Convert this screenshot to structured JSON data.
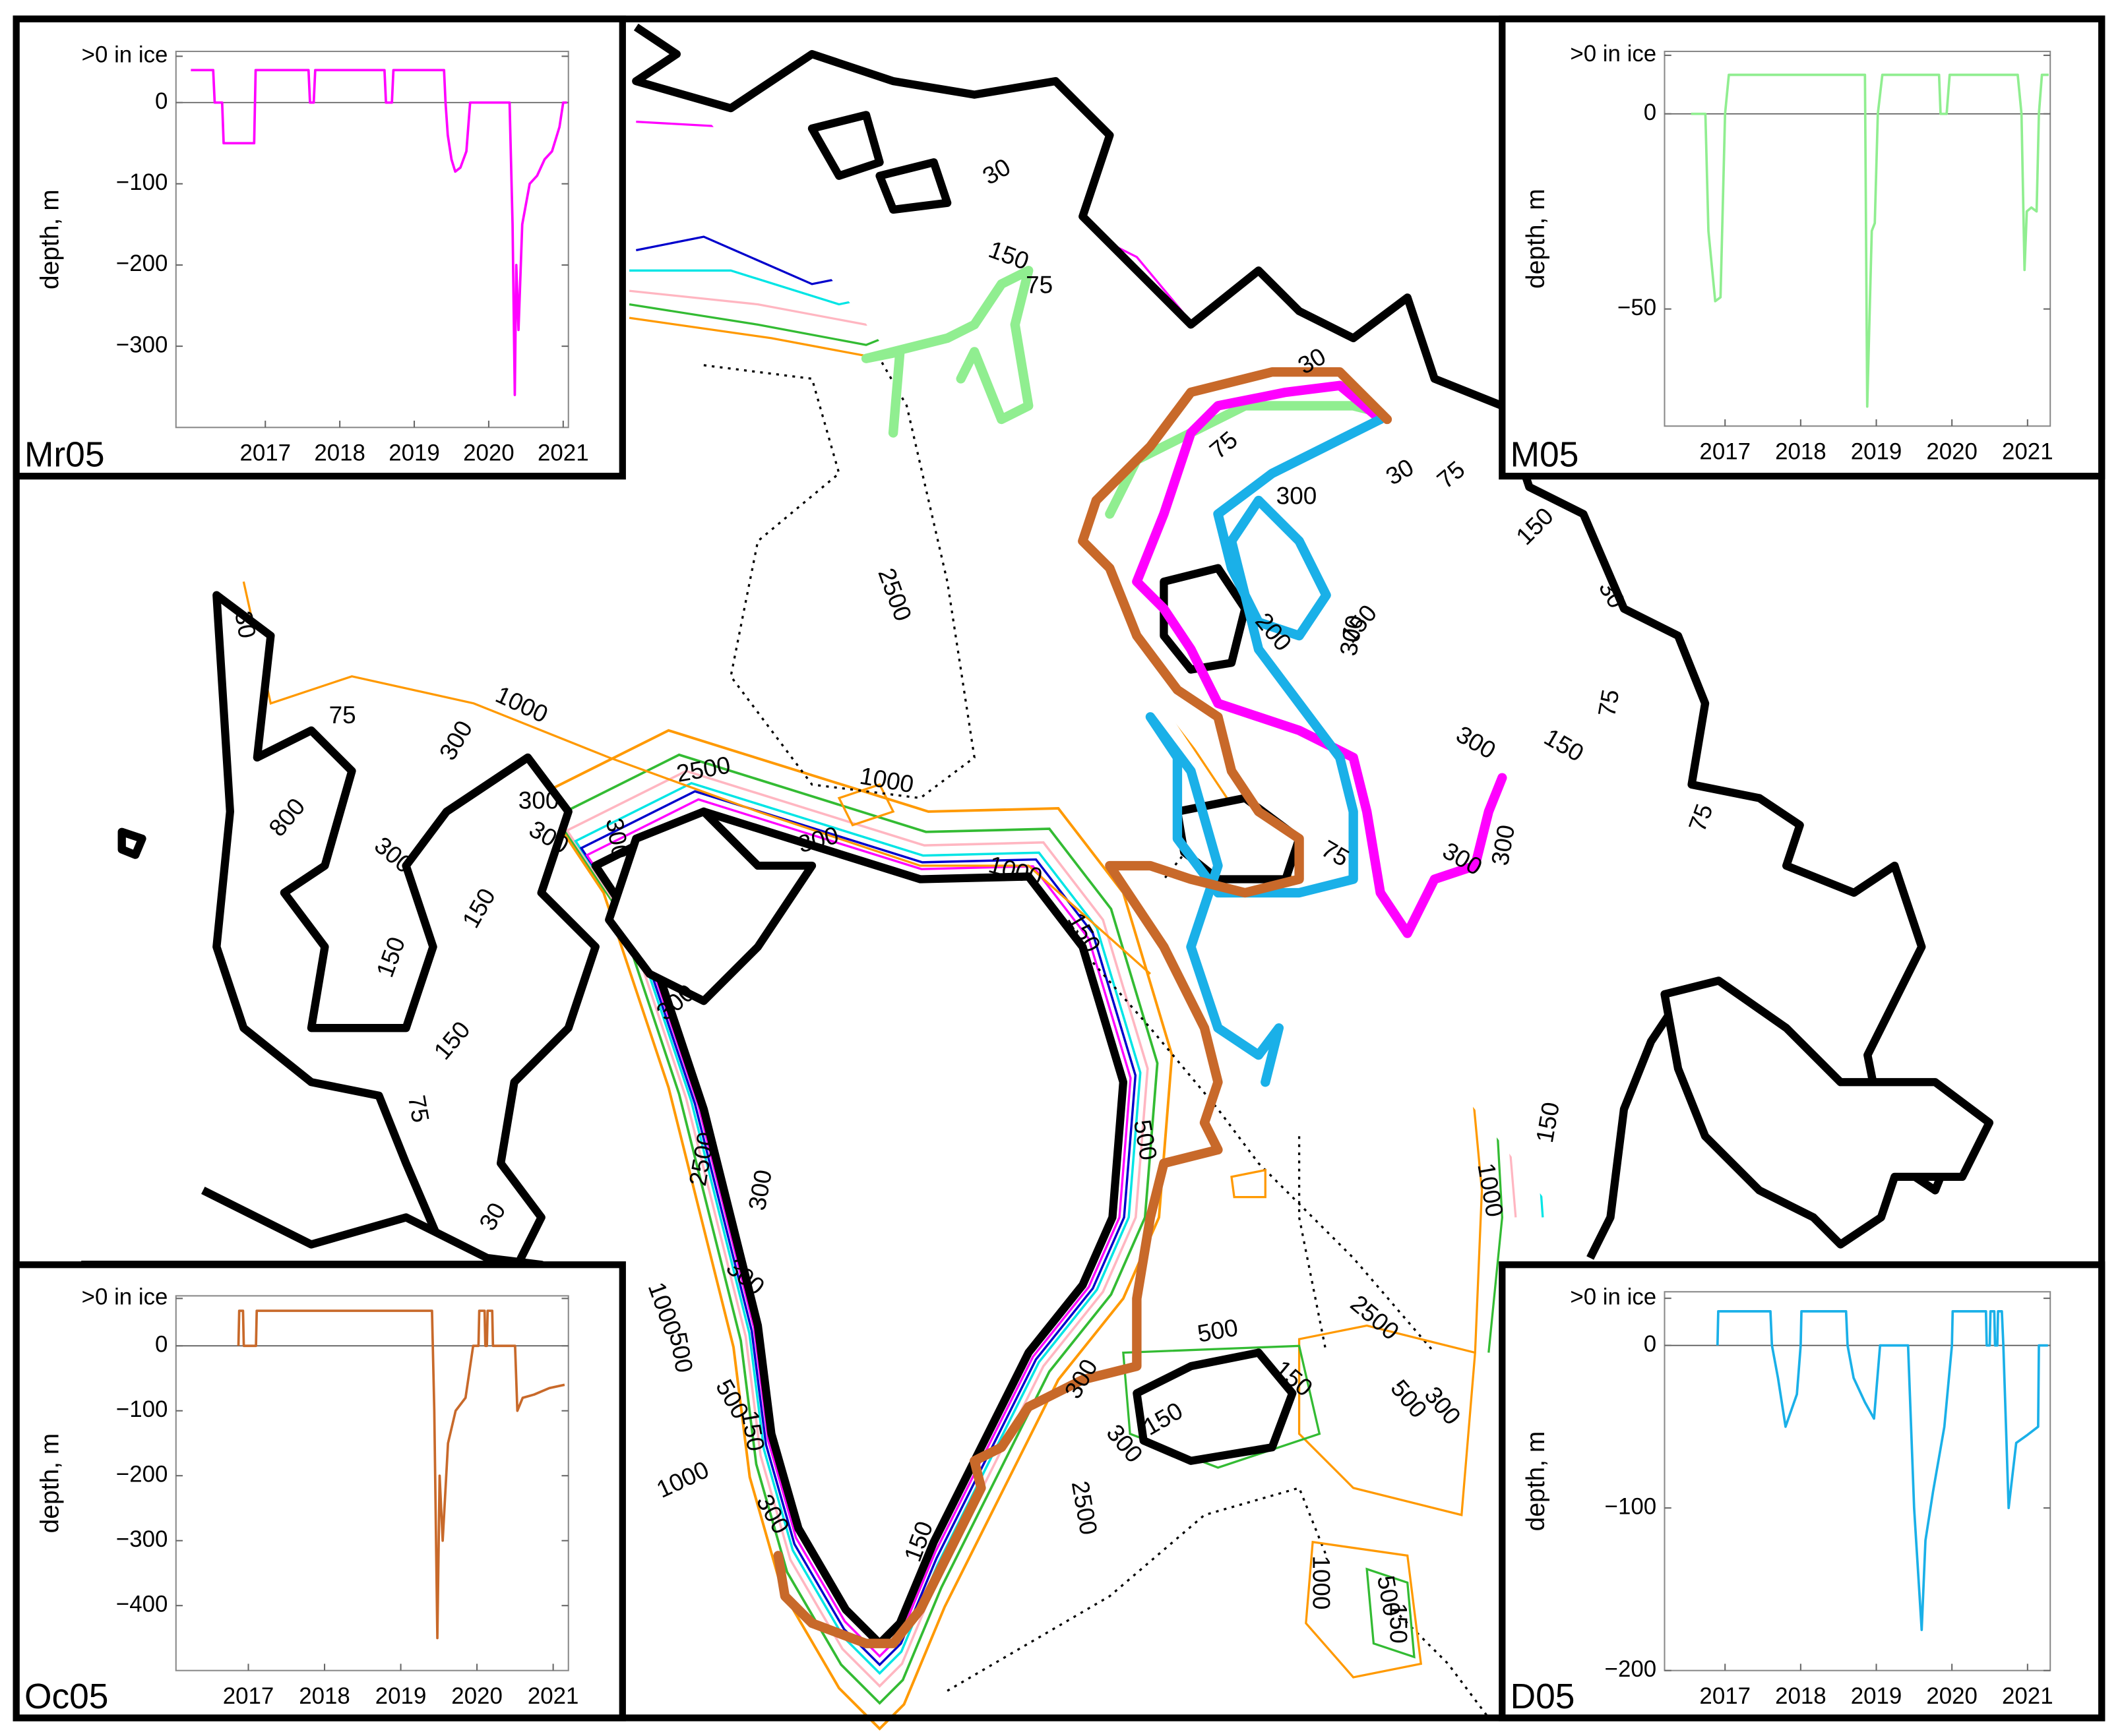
{
  "chart_data": [
    {
      "type": "line",
      "label": "Mr05",
      "ylabel": "depth, m",
      "xlim": [
        2015.8,
        2021.07
      ],
      "xticks": [
        2017,
        2018,
        2019,
        2020,
        2021
      ],
      "ylim": [
        -400,
        63
      ],
      "yticks": [
        {
          "value": 57,
          "label": ">0 in ice"
        },
        0,
        {
          "value": -100,
          "label": "−100"
        },
        {
          "value": -200,
          "label": "−200"
        },
        {
          "value": -300,
          "label": "−300"
        }
      ],
      "x": [
        2016.0,
        2016.3,
        2016.32,
        2016.42,
        2016.44,
        2016.85,
        2016.87,
        2017.58,
        2017.6,
        2017.65,
        2017.67,
        2018.6,
        2018.62,
        2018.7,
        2018.72,
        2019.4,
        2019.42,
        2019.45,
        2019.5,
        2019.55,
        2019.62,
        2019.7,
        2019.75,
        2020.28,
        2020.32,
        2020.35,
        2020.37,
        2020.4,
        2020.45,
        2020.55,
        2020.65,
        2020.75,
        2020.85,
        2020.95,
        2021.0,
        2021.05
      ],
      "series": [
        {
          "color": "#ff00ff",
          "values": [
            40,
            40,
            0,
            0,
            -50,
            -50,
            40,
            40,
            0,
            0,
            40,
            40,
            0,
            0,
            40,
            40,
            0,
            -40,
            -70,
            -85,
            -80,
            -60,
            0,
            0,
            -150,
            -360,
            -200,
            -280,
            -150,
            -100,
            -90,
            -70,
            -60,
            -30,
            0,
            0
          ]
        }
      ]
    },
    {
      "type": "line",
      "label": "M05",
      "ylabel": "depth, m",
      "xlim": [
        2016.2,
        2021.3
      ],
      "xticks": [
        2017,
        2018,
        2019,
        2020,
        2021
      ],
      "ylim": [
        -80,
        16
      ],
      "yticks": [
        {
          "value": 15,
          "label": ">0 in ice"
        },
        0,
        {
          "value": -50,
          "label": "−50"
        }
      ],
      "x": [
        2016.55,
        2016.74,
        2016.78,
        2016.87,
        2016.94,
        2017.0,
        2017.05,
        2018.85,
        2018.88,
        2018.94,
        2018.98,
        2019.02,
        2019.08,
        2019.83,
        2019.85,
        2019.93,
        2019.97,
        2020.87,
        2020.92,
        2020.96,
        2020.99,
        2021.05,
        2021.12,
        2021.15,
        2021.19,
        2021.28
      ],
      "series": [
        {
          "color": "#90ee90",
          "values": [
            0,
            0,
            -30,
            -48,
            -47,
            0,
            10,
            10,
            -75,
            -30,
            -28,
            0,
            10,
            10,
            0,
            0,
            10,
            10,
            0,
            -40,
            -25,
            -24,
            -25,
            0,
            10,
            10
          ]
        }
      ]
    },
    {
      "type": "line",
      "label": "Oc05",
      "ylabel": "depth, m",
      "xlim": [
        2016.05,
        2021.2
      ],
      "xticks": [
        2017,
        2018,
        2019,
        2020,
        2021
      ],
      "ylim": [
        -500,
        77
      ],
      "yticks": [
        {
          "value": 73,
          "label": ">0 in ice"
        },
        0,
        {
          "value": -100,
          "label": "−100"
        },
        {
          "value": -200,
          "label": "−200"
        },
        {
          "value": -300,
          "label": "−300"
        },
        {
          "value": -400,
          "label": "−400"
        }
      ],
      "x": [
        2016.87,
        2016.88,
        2016.93,
        2016.94,
        2017.1,
        2017.11,
        2019.41,
        2019.44,
        2019.48,
        2019.51,
        2019.55,
        2019.62,
        2019.72,
        2019.85,
        2019.95,
        2020.02,
        2020.03,
        2020.1,
        2020.11,
        2020.13,
        2020.14,
        2020.2,
        2020.21,
        2020.5,
        2020.53,
        2020.6,
        2020.75,
        2020.95,
        2021.15
      ],
      "series": [
        {
          "color": "#c8692a",
          "values": [
            0,
            54,
            54,
            0,
            0,
            54,
            54,
            -100,
            -450,
            -200,
            -300,
            -150,
            -100,
            -80,
            0,
            0,
            54,
            54,
            0,
            0,
            54,
            54,
            0,
            0,
            -100,
            -80,
            -75,
            -65,
            -60
          ]
        }
      ]
    },
    {
      "type": "line",
      "label": "D05",
      "ylabel": "depth, m",
      "xlim": [
        2016.2,
        2021.3
      ],
      "xticks": [
        2017,
        2018,
        2019,
        2020,
        2021
      ],
      "ylim": [
        -200,
        33
      ],
      "yticks": [
        {
          "value": 29,
          "label": ">0 in ice"
        },
        0,
        {
          "value": -100,
          "label": "−100"
        },
        {
          "value": -200,
          "label": "−200"
        }
      ],
      "x": [
        2016.9,
        2016.91,
        2017.6,
        2017.62,
        2017.7,
        2017.8,
        2017.95,
        2018.0,
        2018.01,
        2018.6,
        2018.62,
        2018.7,
        2018.85,
        2018.97,
        2019.05,
        2019.42,
        2019.5,
        2019.6,
        2019.65,
        2019.75,
        2019.9,
        2020.0,
        2020.01,
        2020.45,
        2020.46,
        2020.5,
        2020.51,
        2020.56,
        2020.57,
        2020.6,
        2020.61,
        2020.66,
        2020.68,
        2020.75,
        2020.85,
        2021.0,
        2021.14,
        2021.15,
        2021.27
      ],
      "series": [
        {
          "color": "#1ab0e8",
          "values": [
            0,
            21,
            21,
            0,
            -20,
            -50,
            -30,
            0,
            21,
            21,
            0,
            -20,
            -35,
            -45,
            0,
            0,
            -100,
            -175,
            -120,
            -90,
            -50,
            0,
            21,
            21,
            0,
            0,
            21,
            21,
            0,
            0,
            21,
            21,
            0,
            -100,
            -60,
            -55,
            -50,
            0,
            0
          ]
        }
      ]
    }
  ],
  "map": {
    "contour_labels": [
      "30",
      "150",
      "75",
      "30",
      "75",
      "300",
      "30",
      "75",
      "150",
      "30",
      "2500",
      "150",
      "300",
      "200",
      "30",
      "75",
      "1000",
      "300",
      "150",
      "75",
      "300",
      "2500",
      "1000",
      "800",
      "300",
      "300",
      "300",
      "300",
      "75",
      "300",
      "300",
      "1000",
      "300",
      "75",
      "150",
      "150",
      "150",
      "300",
      "150",
      "75",
      "500",
      "2500",
      "300",
      "1000",
      "150",
      "30",
      "2500",
      "500",
      "150",
      "1000",
      "500",
      "300",
      "500",
      "150",
      "300",
      "150",
      "300",
      "500",
      "300",
      "1000",
      "2500",
      "300",
      "150",
      "1000",
      "500",
      "150"
    ]
  }
}
